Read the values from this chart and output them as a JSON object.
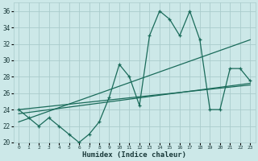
{
  "xlabel": "Humidex (Indice chaleur)",
  "background_color": "#cce8e8",
  "grid_color": "#aacccc",
  "line_color": "#1a6b5a",
  "xlim": [
    -0.5,
    23.5
  ],
  "ylim": [
    20,
    37
  ],
  "x_ticks": [
    0,
    1,
    2,
    3,
    4,
    5,
    6,
    7,
    8,
    9,
    10,
    11,
    12,
    13,
    14,
    15,
    16,
    17,
    18,
    19,
    20,
    21,
    22,
    23
  ],
  "y_ticks": [
    20,
    22,
    24,
    26,
    28,
    30,
    32,
    34,
    36
  ],
  "series1_x": [
    0,
    1,
    2,
    3,
    4,
    5,
    6,
    7,
    8,
    9,
    10,
    11,
    12,
    13,
    14,
    15,
    16,
    17,
    18,
    19,
    20,
    21,
    22,
    23
  ],
  "series1_y": [
    24,
    23,
    22,
    23,
    22,
    21,
    20,
    21,
    22.5,
    25.5,
    29.5,
    28,
    24.5,
    33,
    36,
    35,
    33,
    36,
    32.5,
    24,
    24,
    29,
    29,
    27.5
  ],
  "series2_x": [
    0,
    23
  ],
  "series2_y": [
    22.5,
    32.5
  ],
  "series3_x": [
    0,
    23
  ],
  "series3_y": [
    23.5,
    27.2
  ],
  "series4_x": [
    0,
    23
  ],
  "series4_y": [
    24.0,
    27.0
  ]
}
